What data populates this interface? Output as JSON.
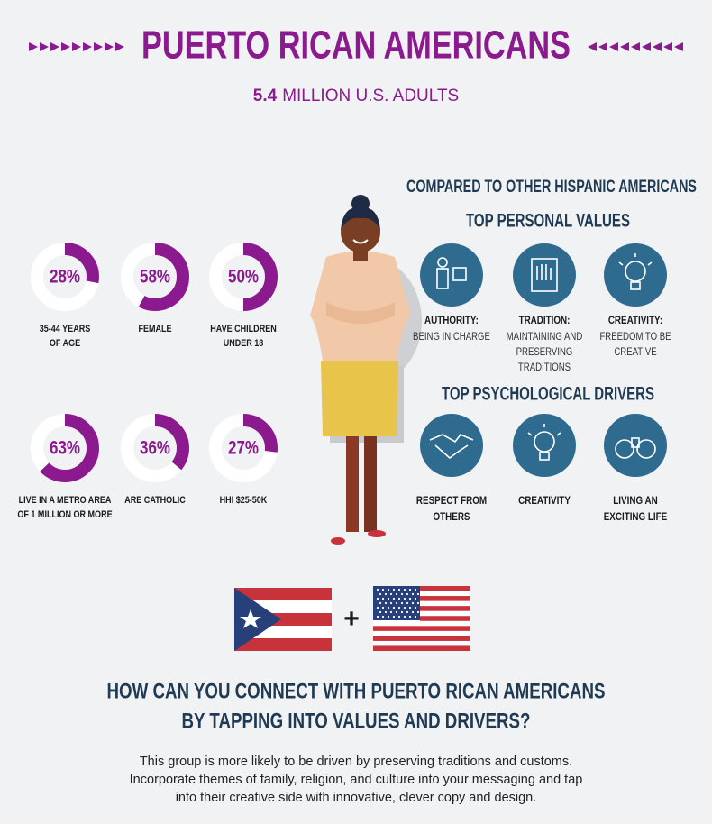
{
  "header": {
    "title": "PUERTO RICAN AMERICANS",
    "subtitle_number": "5.4",
    "subtitle_text": "MILLION U.S. ADULTS"
  },
  "stats": [
    {
      "value": 28,
      "value_label": "28%",
      "label_lines": [
        "35-44 YEARS",
        "OF AGE"
      ]
    },
    {
      "value": 58,
      "value_label": "58%",
      "label_lines": [
        "FEMALE"
      ]
    },
    {
      "value": 50,
      "value_label": "50%",
      "label_lines": [
        "HAVE CHILDREN",
        "UNDER 18"
      ]
    },
    {
      "value": 63,
      "value_label": "63%",
      "label_lines": [
        "LIVE IN A METRO AREA",
        "OF 1 MILLION OR MORE"
      ]
    },
    {
      "value": 36,
      "value_label": "36%",
      "label_lines": [
        "ARE CATHOLIC"
      ]
    },
    {
      "value": 27,
      "value_label": "27%",
      "label_lines": [
        "HHI $25-50K"
      ]
    }
  ],
  "comparison": {
    "heading": "COMPARED TO OTHER HISPANIC AMERICANS",
    "values_heading": "TOP PERSONAL VALUES",
    "values": [
      {
        "title": "AUTHORITY:",
        "desc_lines": [
          "BEING IN CHARGE"
        ]
      },
      {
        "title": "TRADITION:",
        "desc_lines": [
          "MAINTAINING AND",
          "PRESERVING",
          "TRADITIONS"
        ]
      },
      {
        "title": "CREATIVITY:",
        "desc_lines": [
          "FREEDOM TO BE",
          "CREATIVE"
        ]
      }
    ],
    "drivers_heading": "TOP PSYCHOLOGICAL DRIVERS",
    "drivers": [
      {
        "label_lines": [
          "RESPECT FROM",
          "OTHERS"
        ]
      },
      {
        "label_lines": [
          "CREATIVITY"
        ]
      },
      {
        "label_lines": [
          "LIVING AN",
          "EXCITING LIFE"
        ]
      }
    ]
  },
  "plus": "+",
  "question_lines": [
    "HOW CAN YOU CONNECT WITH PUERTO RICAN AMERICANS",
    "BY TAPPING INTO VALUES AND DRIVERS?"
  ],
  "body_lines": [
    "This group is more likely to be driven by preserving traditions and customs.",
    "Incorporate themes of family, religion, and culture into your messaging and tap",
    "into their creative side with innovative, clever copy and design."
  ]
}
